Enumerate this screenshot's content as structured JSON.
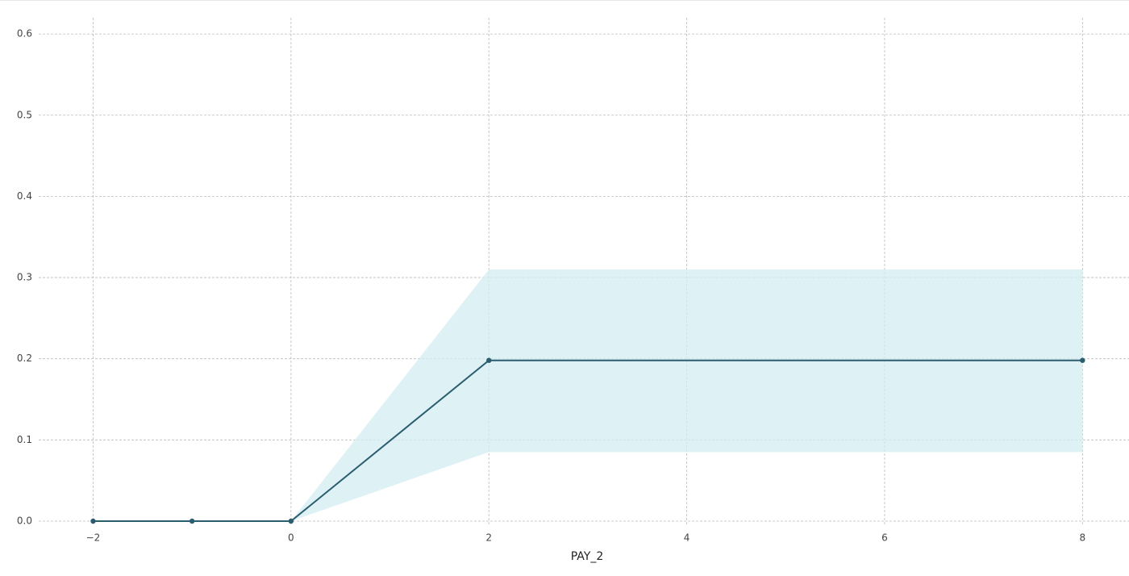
{
  "chart_data": {
    "type": "line",
    "xlabel": "PAY_2",
    "x": [
      -2,
      -1,
      0,
      2,
      8
    ],
    "values": [
      0,
      0,
      0,
      0.198,
      0.198
    ],
    "lower": [
      0,
      0,
      0,
      0.085,
      0.085
    ],
    "upper": [
      0,
      0,
      0,
      0.31,
      0.31
    ],
    "color": "#2a5d6e",
    "band_color": "#d3edf3",
    "xlim": [
      -2.55,
      8.47
    ],
    "ylim": [
      -0.005,
      0.62
    ],
    "xticks": [
      {
        "value": -2,
        "label": "−2"
      },
      0,
      2,
      4,
      6,
      8
    ],
    "yticks": [
      {
        "value": 0,
        "label": "0.0"
      },
      0.1,
      0.2,
      0.3,
      0.4,
      0.5,
      0.6
    ],
    "grid": true
  }
}
